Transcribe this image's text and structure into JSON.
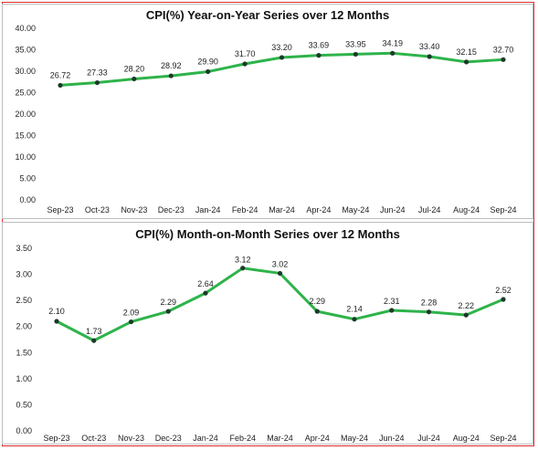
{
  "chart_data": [
    {
      "type": "line",
      "title": "CPI(%) Year-on-Year Series over 12 Months",
      "categories": [
        "Sep-23",
        "Oct-23",
        "Nov-23",
        "Dec-23",
        "Jan-24",
        "Feb-24",
        "Mar-24",
        "Apr-24",
        "May-24",
        "Jun-24",
        "Jul-24",
        "Aug-24",
        "Sep-24"
      ],
      "series": [
        {
          "values": [
            26.72,
            27.33,
            28.2,
            28.92,
            29.9,
            31.7,
            33.2,
            33.69,
            33.95,
            34.19,
            33.4,
            32.15,
            32.7
          ],
          "labels": [
            "26.72",
            "27.33",
            "28.20",
            "28.92",
            "29.90",
            "31.70",
            "33.20",
            "33.69",
            "33.95",
            "34.19",
            "33.40",
            "32.15",
            "32.70"
          ]
        }
      ],
      "ylim": [
        0,
        40
      ],
      "yticks": [
        "0.00",
        "5.00",
        "10.00",
        "15.00",
        "20.00",
        "25.00",
        "30.00",
        "35.00",
        "40.00"
      ],
      "line_color": "#2eb34a",
      "marker_color": "#1c3a2a",
      "grid": false,
      "legend": "none"
    },
    {
      "type": "line",
      "title": "CPI(%) Month-on-Month Series over 12 Months",
      "categories": [
        "Sep-23",
        "Oct-23",
        "Nov-23",
        "Dec-23",
        "Jan-24",
        "Feb-24",
        "Mar-24",
        "Apr-24",
        "May-24",
        "Jun-24",
        "Jul-24",
        "Aug-24",
        "Sep-24"
      ],
      "series": [
        {
          "values": [
            2.1,
            1.73,
            2.09,
            2.29,
            2.64,
            3.12,
            3.02,
            2.29,
            2.14,
            2.31,
            2.28,
            2.22,
            2.52
          ],
          "labels": [
            "2.10",
            "1.73",
            "2.09",
            "2.29",
            "2.64",
            "3.12",
            "3.02",
            "2.29",
            "2.14",
            "2.31",
            "2.28",
            "2.22",
            "2.52"
          ]
        }
      ],
      "ylim": [
        0,
        3.5
      ],
      "yticks": [
        "0.00",
        "0.50",
        "1.00",
        "1.50",
        "2.00",
        "2.50",
        "3.00",
        "3.50"
      ],
      "line_color": "#2eb34a",
      "marker_color": "#1c3a2a",
      "grid": false,
      "legend": "none"
    }
  ]
}
